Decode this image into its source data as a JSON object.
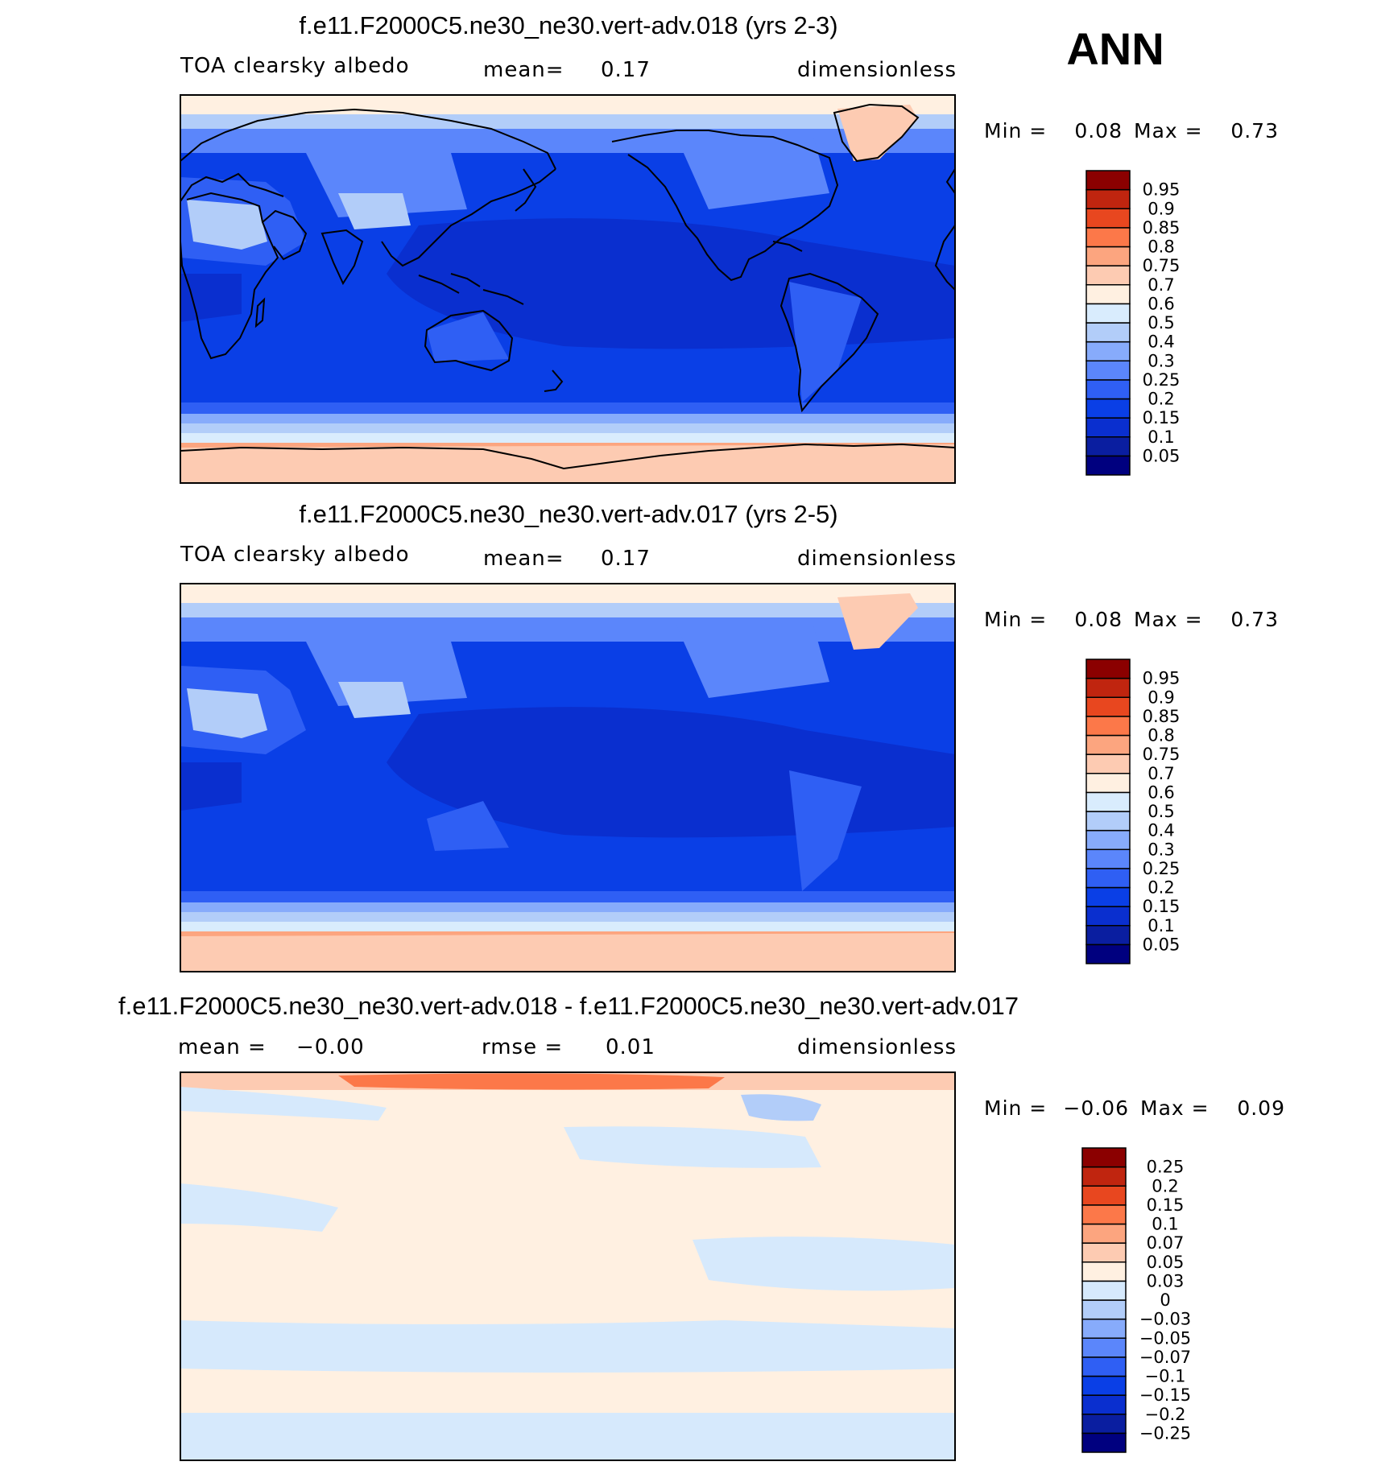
{
  "season": "ANN",
  "colors": {
    "abs": [
      "#00007f",
      "#0a1ea0",
      "#0a2fcf",
      "#0a3fe6",
      "#2f5ff4",
      "#5b86fb",
      "#87abfb",
      "#b2cdf9",
      "#d9ecfd",
      "#fff0e1",
      "#fdcbb2",
      "#fca57f",
      "#fc7849",
      "#e8471f",
      "#c0250f",
      "#8b0000"
    ],
    "diff": [
      "#00007f",
      "#0a1ea0",
      "#0a2fcf",
      "#0a3fe6",
      "#2f5ff4",
      "#5b86fb",
      "#87abfb",
      "#b2cdf9",
      "#d6e9fc",
      "#fff0e1",
      "#fdcbb2",
      "#fca57f",
      "#fc7849",
      "#e8471f",
      "#c0250f",
      "#8b0000"
    ]
  },
  "chart_data": [
    {
      "type": "heatmap",
      "title": "f.e11.F2000C5.ne30_ne30.vert-adv.018 (yrs 2-3)",
      "variable": "TOA clearsky albedo",
      "mean_label": "mean=",
      "mean_value": "0.17",
      "units": "dimensionless",
      "min_label": "Min =",
      "min_value": "0.08",
      "max_label": "Max =",
      "max_value": "0.73",
      "levels": [
        "0.95",
        "0.9",
        "0.85",
        "0.8",
        "0.75",
        "0.7",
        "0.6",
        "0.5",
        "0.4",
        "0.3",
        "0.25",
        "0.2",
        "0.15",
        "0.1",
        "0.05"
      ]
    },
    {
      "type": "heatmap",
      "title": "f.e11.F2000C5.ne30_ne30.vert-adv.017 (yrs 2-5)",
      "variable": "TOA clearsky albedo",
      "mean_label": "mean=",
      "mean_value": "0.17",
      "units": "dimensionless",
      "min_label": "Min =",
      "min_value": "0.08",
      "max_label": "Max =",
      "max_value": "0.73",
      "levels": [
        "0.95",
        "0.9",
        "0.85",
        "0.8",
        "0.75",
        "0.7",
        "0.6",
        "0.5",
        "0.4",
        "0.3",
        "0.25",
        "0.2",
        "0.15",
        "0.1",
        "0.05"
      ]
    },
    {
      "type": "heatmap",
      "title": "f.e11.F2000C5.ne30_ne30.vert-adv.018 - f.e11.F2000C5.ne30_ne30.vert-adv.017",
      "mean_label": "mean =",
      "mean_value": "−0.00",
      "rmse_label": "rmse =",
      "rmse_value": "0.01",
      "units": "dimensionless",
      "min_label": "Min =",
      "min_value": "−0.06",
      "max_label": "Max =",
      "max_value": "0.09",
      "levels": [
        "0.25",
        "0.2",
        "0.15",
        "0.1",
        "0.07",
        "0.05",
        "0.03",
        "0",
        "−0.03",
        "−0.05",
        "−0.07",
        "−0.1",
        "−0.15",
        "−0.2",
        "−0.25"
      ]
    }
  ]
}
